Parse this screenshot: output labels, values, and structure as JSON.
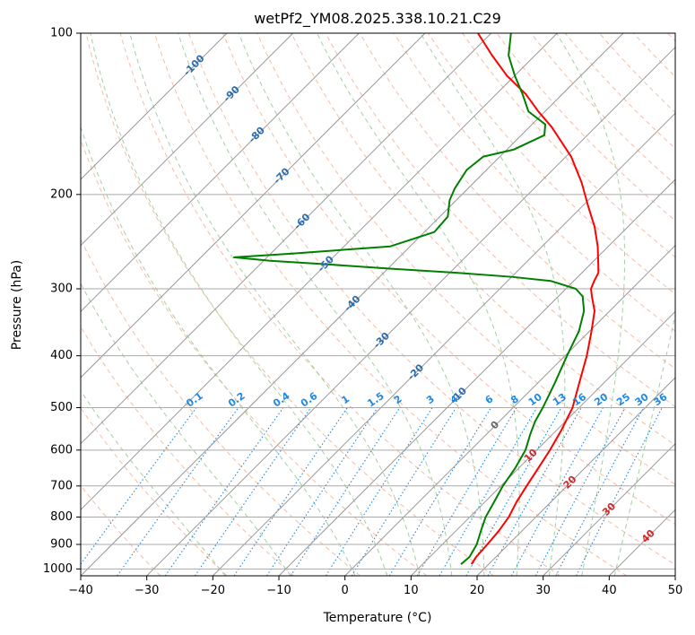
{
  "chart_data": {
    "type": "line",
    "title": "wetPf2_YM08.2025.338.10.21.C29",
    "xlabel": "Temperature (°C)",
    "ylabel": "Pressure (hPa)",
    "xlim": [
      -40,
      50
    ],
    "ylim": [
      1030,
      100
    ],
    "y_scale": "log",
    "grid": true,
    "x_ticks": [
      -40,
      -30,
      -20,
      -10,
      0,
      10,
      20,
      30,
      40,
      50
    ],
    "y_ticks": [
      100,
      200,
      300,
      400,
      500,
      600,
      700,
      800,
      900,
      1000
    ],
    "skew": "45 degrees",
    "colors": {
      "temperature": "#ff0000",
      "dewpoint": "#008000",
      "dry_adiabat": "#f4a582",
      "moist_adiabat": "#8fc98f",
      "mixing_ratio": "#1e88e5",
      "isotherm": "#999999",
      "isotherm_label": "#2b6cb0",
      "adiabat_label": "#d62728"
    },
    "series": [
      {
        "name": "temperature",
        "points": [
          {
            "p": 980,
            "t": 17.4
          },
          {
            "p": 950,
            "t": 17.0
          },
          {
            "p": 900,
            "t": 16.8
          },
          {
            "p": 850,
            "t": 16.5
          },
          {
            "p": 800,
            "t": 15.9
          },
          {
            "p": 750,
            "t": 14.8
          },
          {
            "p": 700,
            "t": 13.9
          },
          {
            "p": 650,
            "t": 13.0
          },
          {
            "p": 600,
            "t": 12.0
          },
          {
            "p": 550,
            "t": 10.7
          },
          {
            "p": 500,
            "t": 9.0
          },
          {
            "p": 450,
            "t": 6.3
          },
          {
            "p": 400,
            "t": 3.3
          },
          {
            "p": 360,
            "t": 0.3
          },
          {
            "p": 330,
            "t": -2.3
          },
          {
            "p": 310,
            "t": -4.9
          },
          {
            "p": 300,
            "t": -6.2
          },
          {
            "p": 290,
            "t": -6.9
          },
          {
            "p": 280,
            "t": -7.5
          },
          {
            "p": 270,
            "t": -8.8
          },
          {
            "p": 250,
            "t": -11.6
          },
          {
            "p": 230,
            "t": -15.0
          },
          {
            "p": 210,
            "t": -19.2
          },
          {
            "p": 190,
            "t": -23.7
          },
          {
            "p": 170,
            "t": -29.2
          },
          {
            "p": 150,
            "t": -36.5
          },
          {
            "p": 140,
            "t": -41.0
          },
          {
            "p": 130,
            "t": -45.5
          },
          {
            "p": 120,
            "t": -51.2
          },
          {
            "p": 110,
            "t": -56.5
          },
          {
            "p": 100,
            "t": -62.0
          }
        ]
      },
      {
        "name": "dewpoint",
        "points": [
          {
            "p": 980,
            "t": 15.8
          },
          {
            "p": 950,
            "t": 16.0
          },
          {
            "p": 900,
            "t": 15.2
          },
          {
            "p": 850,
            "t": 13.8
          },
          {
            "p": 800,
            "t": 12.4
          },
          {
            "p": 750,
            "t": 11.4
          },
          {
            "p": 700,
            "t": 10.3
          },
          {
            "p": 650,
            "t": 9.5
          },
          {
            "p": 600,
            "t": 8.3
          },
          {
            "p": 560,
            "t": 6.6
          },
          {
            "p": 530,
            "t": 5.4
          },
          {
            "p": 500,
            "t": 4.5
          },
          {
            "p": 450,
            "t": 2.6
          },
          {
            "p": 400,
            "t": 0.3
          },
          {
            "p": 360,
            "t": -1.6
          },
          {
            "p": 330,
            "t": -3.9
          },
          {
            "p": 310,
            "t": -6.3
          },
          {
            "p": 300,
            "t": -8.5
          },
          {
            "p": 290,
            "t": -13.5
          },
          {
            "p": 285,
            "t": -20.0
          },
          {
            "p": 280,
            "t": -29.0
          },
          {
            "p": 275,
            "t": -40.0
          },
          {
            "p": 270,
            "t": -50.0
          },
          {
            "p": 266,
            "t": -59.0
          },
          {
            "p": 262,
            "t": -65.0
          },
          {
            "p": 258,
            "t": -57.0
          },
          {
            "p": 250,
            "t": -43.0
          },
          {
            "p": 235,
            "t": -38.5
          },
          {
            "p": 220,
            "t": -38.8
          },
          {
            "p": 205,
            "t": -41.0
          },
          {
            "p": 195,
            "t": -42.0
          },
          {
            "p": 180,
            "t": -43.0
          },
          {
            "p": 170,
            "t": -42.5
          },
          {
            "p": 165,
            "t": -39.0
          },
          {
            "p": 155,
            "t": -36.5
          },
          {
            "p": 148,
            "t": -38.0
          },
          {
            "p": 140,
            "t": -42.5
          },
          {
            "p": 130,
            "t": -46.0
          },
          {
            "p": 120,
            "t": -50.0
          },
          {
            "p": 110,
            "t": -54.0
          },
          {
            "p": 100,
            "t": -57.0
          }
        ]
      }
    ],
    "isotherms": [
      -100,
      -90,
      -80,
      -70,
      -60,
      -50,
      -40,
      -30,
      -20,
      -10,
      0,
      10,
      20,
      30,
      40,
      50
    ],
    "isotherm_labels": [
      {
        "text": "-100",
        "t": -100,
        "p": 115
      },
      {
        "text": "-90",
        "t": -90,
        "p": 130
      },
      {
        "text": "-80",
        "t": -80,
        "p": 155
      },
      {
        "text": "-70",
        "t": -70,
        "p": 185
      },
      {
        "text": "-60",
        "t": -60,
        "p": 225
      },
      {
        "text": "-50",
        "t": -50,
        "p": 270
      },
      {
        "text": "-40",
        "t": -40,
        "p": 320
      },
      {
        "text": "-30",
        "t": -30,
        "p": 375
      },
      {
        "text": "-20",
        "t": -20,
        "p": 430
      },
      {
        "text": "-10",
        "t": -10,
        "p": 475
      },
      {
        "text": "0",
        "t": 0,
        "p": 540
      },
      {
        "text": "10",
        "t": 10,
        "p": 615
      },
      {
        "text": "20",
        "t": 20,
        "p": 690
      },
      {
        "text": "30",
        "t": 30,
        "p": 775
      },
      {
        "text": "40",
        "t": 40,
        "p": 870
      }
    ],
    "mixing_ratio_lines": [
      0.1,
      0.2,
      0.4,
      0.6,
      1,
      1.5,
      2,
      3,
      4,
      6,
      8,
      10,
      13,
      16,
      20,
      25,
      30,
      36
    ],
    "mixing_ratio_labels": [
      "0.1",
      "0.2",
      "0.4",
      "0.6",
      "1",
      "1.5",
      "2",
      "3",
      "4",
      "6",
      "8",
      "10",
      "13",
      "16",
      "20",
      "25",
      "30",
      "36"
    ],
    "dry_adiabats_theta_c": [
      -30,
      -20,
      -10,
      0,
      10,
      20,
      30,
      40,
      50,
      60,
      70,
      80,
      90,
      100,
      110,
      120,
      130,
      140,
      150,
      160,
      170,
      180,
      190,
      200
    ],
    "moist_adiabats_thetaw_c": [
      -20,
      -10,
      0,
      5,
      10,
      15,
      20,
      25,
      30,
      35,
      40
    ]
  }
}
